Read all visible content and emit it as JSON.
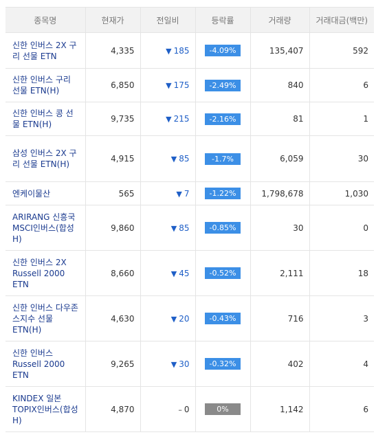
{
  "colors": {
    "down_text": "#1f5fc7",
    "down_badge": "#3c8fe6",
    "flat_badge": "#8a8a8a",
    "name_text": "#1a3a8f",
    "header_bg": "#f2f2f2"
  },
  "table": {
    "headers": [
      "종목명",
      "현재가",
      "전일비",
      "등락률",
      "거래량",
      "거래대금(백만)"
    ],
    "rows": [
      {
        "name": "신한 인버스 2X 구리 선물 ETN",
        "price": "4,335",
        "direction": "down",
        "change": "185",
        "rate": "-4.09%",
        "volume": "135,407",
        "amount": "592"
      },
      {
        "name": "신한 인버스 구리 선물 ETN(H)",
        "price": "6,850",
        "direction": "down",
        "change": "175",
        "rate": "-2.49%",
        "volume": "840",
        "amount": "6"
      },
      {
        "name": "신한 인버스 콩 선물 ETN(H)",
        "price": "9,735",
        "direction": "down",
        "change": "215",
        "rate": "-2.16%",
        "volume": "81",
        "amount": "1"
      },
      {
        "name": "삼성 인버스 2X 구리 선물 ETN(H)",
        "price": "4,915",
        "direction": "down",
        "change": "85",
        "rate": "-1.7%",
        "volume": "6,059",
        "amount": "30"
      },
      {
        "name": "엔케이물산",
        "price": "565",
        "direction": "down",
        "change": "7",
        "rate": "-1.22%",
        "volume": "1,798,678",
        "amount": "1,030"
      },
      {
        "name": "ARIRANG 신흥국 MSCI인버스(합성 H)",
        "price": "9,860",
        "direction": "down",
        "change": "85",
        "rate": "-0.85%",
        "volume": "30",
        "amount": "0"
      },
      {
        "name": "신한 인버스 2X Russell 2000 ETN",
        "price": "8,660",
        "direction": "down",
        "change": "45",
        "rate": "-0.52%",
        "volume": "2,111",
        "amount": "18"
      },
      {
        "name": "신한 인버스 다우존스지수 선물 ETN(H)",
        "price": "4,630",
        "direction": "down",
        "change": "20",
        "rate": "-0.43%",
        "volume": "716",
        "amount": "3"
      },
      {
        "name": "신한 인버스 Russell 2000 ETN",
        "price": "9,265",
        "direction": "down",
        "change": "30",
        "rate": "-0.32%",
        "volume": "402",
        "amount": "4"
      },
      {
        "name": "KINDEX 일본 TOPIX인버스(합성 H)",
        "price": "4,870",
        "direction": "flat",
        "change": "0",
        "rate": "0%",
        "volume": "1,142",
        "amount": "6"
      }
    ]
  }
}
